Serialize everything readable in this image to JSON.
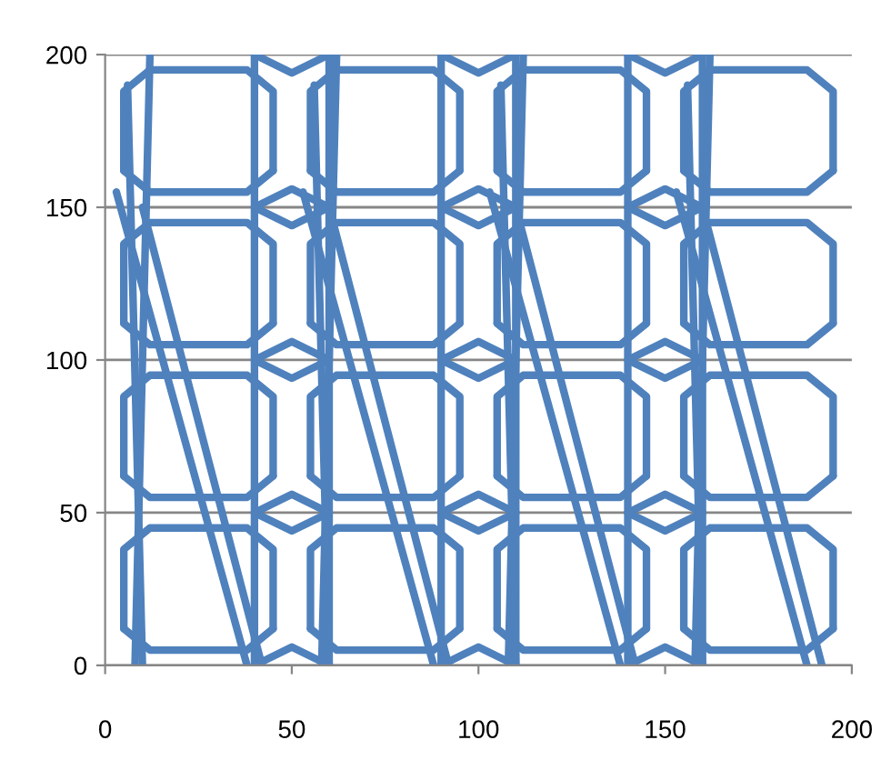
{
  "chart_data": {
    "type": "line",
    "xlim": [
      0,
      200
    ],
    "ylim": [
      0,
      200
    ],
    "xticks": [
      0,
      50,
      100,
      150,
      200
    ],
    "yticks": [
      0,
      50,
      100,
      150,
      200
    ],
    "grid": "y",
    "legend": false,
    "marker": "none",
    "line_style": "solid",
    "series": [
      {
        "color": "#4f81bd",
        "x": [
          5,
          5,
          12,
          38,
          45,
          45
        ],
        "values": [
          12,
          38,
          45,
          45,
          38,
          12
        ]
      },
      {
        "color": "#4f81bd",
        "x": [
          5,
          12,
          38,
          45
        ],
        "values": [
          12,
          5,
          5,
          12
        ]
      },
      {
        "color": "#4f81bd",
        "x": [
          5,
          5,
          12,
          38,
          45,
          45
        ],
        "values": [
          62,
          88,
          95,
          95,
          88,
          62
        ]
      },
      {
        "color": "#4f81bd",
        "x": [
          5,
          12,
          38,
          45
        ],
        "values": [
          62,
          55,
          55,
          62
        ]
      },
      {
        "color": "#4f81bd",
        "x": [
          5,
          5,
          12,
          38,
          45,
          45
        ],
        "values": [
          112,
          138,
          145,
          145,
          138,
          112
        ]
      },
      {
        "color": "#4f81bd",
        "x": [
          5,
          12,
          38,
          45
        ],
        "values": [
          112,
          105,
          105,
          112
        ]
      },
      {
        "color": "#4f81bd",
        "x": [
          5,
          5,
          12,
          38,
          45,
          45
        ],
        "values": [
          162,
          188,
          195,
          195,
          188,
          162
        ]
      },
      {
        "color": "#4f81bd",
        "x": [
          5,
          12,
          38,
          45
        ],
        "values": [
          162,
          155,
          155,
          162
        ]
      },
      {
        "color": "#4f81bd",
        "x": [
          55,
          55,
          62,
          88,
          95,
          95
        ],
        "values": [
          12,
          38,
          45,
          45,
          38,
          12
        ]
      },
      {
        "color": "#4f81bd",
        "x": [
          55,
          62,
          88,
          95
        ],
        "values": [
          12,
          5,
          5,
          12
        ]
      },
      {
        "color": "#4f81bd",
        "x": [
          55,
          55,
          62,
          88,
          95,
          95
        ],
        "values": [
          62,
          88,
          95,
          95,
          88,
          62
        ]
      },
      {
        "color": "#4f81bd",
        "x": [
          55,
          62,
          88,
          95
        ],
        "values": [
          62,
          55,
          55,
          62
        ]
      },
      {
        "color": "#4f81bd",
        "x": [
          55,
          55,
          62,
          88,
          95,
          95
        ],
        "values": [
          112,
          138,
          145,
          145,
          138,
          112
        ]
      },
      {
        "color": "#4f81bd",
        "x": [
          55,
          62,
          88,
          95
        ],
        "values": [
          112,
          105,
          105,
          112
        ]
      },
      {
        "color": "#4f81bd",
        "x": [
          55,
          55,
          62,
          88,
          95,
          95
        ],
        "values": [
          162,
          188,
          195,
          195,
          188,
          162
        ]
      },
      {
        "color": "#4f81bd",
        "x": [
          55,
          62,
          88,
          95
        ],
        "values": [
          162,
          155,
          155,
          162
        ]
      },
      {
        "color": "#4f81bd",
        "x": [
          105,
          105,
          112,
          138,
          145,
          145
        ],
        "values": [
          12,
          38,
          45,
          45,
          38,
          12
        ]
      },
      {
        "color": "#4f81bd",
        "x": [
          105,
          112,
          138,
          145
        ],
        "values": [
          12,
          5,
          5,
          12
        ]
      },
      {
        "color": "#4f81bd",
        "x": [
          105,
          105,
          112,
          138,
          145,
          145
        ],
        "values": [
          62,
          88,
          95,
          95,
          88,
          62
        ]
      },
      {
        "color": "#4f81bd",
        "x": [
          105,
          112,
          138,
          145
        ],
        "values": [
          62,
          55,
          55,
          62
        ]
      },
      {
        "color": "#4f81bd",
        "x": [
          105,
          105,
          112,
          138,
          145,
          145
        ],
        "values": [
          112,
          138,
          145,
          145,
          138,
          112
        ]
      },
      {
        "color": "#4f81bd",
        "x": [
          105,
          112,
          138,
          145
        ],
        "values": [
          112,
          105,
          105,
          112
        ]
      },
      {
        "color": "#4f81bd",
        "x": [
          105,
          105,
          112,
          138,
          145,
          145
        ],
        "values": [
          162,
          188,
          195,
          195,
          188,
          162
        ]
      },
      {
        "color": "#4f81bd",
        "x": [
          105,
          112,
          138,
          145
        ],
        "values": [
          162,
          155,
          155,
          162
        ]
      },
      {
        "color": "#4f81bd",
        "x": [
          155,
          155,
          162,
          188,
          195,
          195
        ],
        "values": [
          12,
          38,
          45,
          45,
          38,
          12
        ]
      },
      {
        "color": "#4f81bd",
        "x": [
          155,
          162,
          188,
          195
        ],
        "values": [
          12,
          5,
          5,
          12
        ]
      },
      {
        "color": "#4f81bd",
        "x": [
          155,
          155,
          162,
          188,
          195,
          195
        ],
        "values": [
          62,
          88,
          95,
          95,
          88,
          62
        ]
      },
      {
        "color": "#4f81bd",
        "x": [
          155,
          162,
          188,
          195
        ],
        "values": [
          62,
          55,
          55,
          62
        ]
      },
      {
        "color": "#4f81bd",
        "x": [
          155,
          155,
          162,
          188,
          195,
          195
        ],
        "values": [
          112,
          138,
          145,
          145,
          138,
          112
        ]
      },
      {
        "color": "#4f81bd",
        "x": [
          155,
          162,
          188,
          195
        ],
        "values": [
          112,
          105,
          105,
          112
        ]
      },
      {
        "color": "#4f81bd",
        "x": [
          155,
          155,
          162,
          188,
          195,
          195
        ],
        "values": [
          162,
          188,
          195,
          195,
          188,
          162
        ]
      },
      {
        "color": "#4f81bd",
        "x": [
          155,
          162,
          188,
          195
        ],
        "values": [
          162,
          155,
          155,
          162
        ]
      },
      {
        "color": "#4f81bd",
        "x": [
          40,
          40
        ],
        "values": [
          200,
          0
        ]
      },
      {
        "color": "#4f81bd",
        "x": [
          60,
          60
        ],
        "values": [
          200,
          0
        ]
      },
      {
        "color": "#4f81bd",
        "x": [
          40,
          50,
          60
        ],
        "values": [
          200,
          194,
          200
        ]
      },
      {
        "color": "#4f81bd",
        "x": [
          40,
          50,
          60
        ],
        "values": [
          0,
          6,
          0
        ]
      },
      {
        "color": "#4f81bd",
        "x": [
          40,
          50,
          60
        ],
        "values": [
          50,
          56,
          50
        ]
      },
      {
        "color": "#4f81bd",
        "x": [
          40,
          50,
          60
        ],
        "values": [
          50,
          44,
          50
        ]
      },
      {
        "color": "#4f81bd",
        "x": [
          40,
          50,
          60
        ],
        "values": [
          100,
          106,
          100
        ]
      },
      {
        "color": "#4f81bd",
        "x": [
          40,
          50,
          60
        ],
        "values": [
          100,
          94,
          100
        ]
      },
      {
        "color": "#4f81bd",
        "x": [
          40,
          50,
          60
        ],
        "values": [
          150,
          156,
          150
        ]
      },
      {
        "color": "#4f81bd",
        "x": [
          40,
          50,
          60
        ],
        "values": [
          150,
          144,
          150
        ]
      },
      {
        "color": "#4f81bd",
        "x": [
          90,
          90
        ],
        "values": [
          200,
          0
        ]
      },
      {
        "color": "#4f81bd",
        "x": [
          110,
          110
        ],
        "values": [
          200,
          0
        ]
      },
      {
        "color": "#4f81bd",
        "x": [
          90,
          100,
          110
        ],
        "values": [
          200,
          194,
          200
        ]
      },
      {
        "color": "#4f81bd",
        "x": [
          90,
          100,
          110
        ],
        "values": [
          0,
          6,
          0
        ]
      },
      {
        "color": "#4f81bd",
        "x": [
          90,
          100,
          110
        ],
        "values": [
          50,
          56,
          50
        ]
      },
      {
        "color": "#4f81bd",
        "x": [
          90,
          100,
          110
        ],
        "values": [
          50,
          44,
          50
        ]
      },
      {
        "color": "#4f81bd",
        "x": [
          90,
          100,
          110
        ],
        "values": [
          100,
          106,
          100
        ]
      },
      {
        "color": "#4f81bd",
        "x": [
          90,
          100,
          110
        ],
        "values": [
          100,
          94,
          100
        ]
      },
      {
        "color": "#4f81bd",
        "x": [
          90,
          100,
          110
        ],
        "values": [
          150,
          156,
          150
        ]
      },
      {
        "color": "#4f81bd",
        "x": [
          90,
          100,
          110
        ],
        "values": [
          150,
          144,
          150
        ]
      },
      {
        "color": "#4f81bd",
        "x": [
          140,
          140
        ],
        "values": [
          200,
          0
        ]
      },
      {
        "color": "#4f81bd",
        "x": [
          160,
          160
        ],
        "values": [
          200,
          0
        ]
      },
      {
        "color": "#4f81bd",
        "x": [
          140,
          150,
          160
        ],
        "values": [
          200,
          194,
          200
        ]
      },
      {
        "color": "#4f81bd",
        "x": [
          140,
          150,
          160
        ],
        "values": [
          0,
          6,
          0
        ]
      },
      {
        "color": "#4f81bd",
        "x": [
          140,
          150,
          160
        ],
        "values": [
          50,
          56,
          50
        ]
      },
      {
        "color": "#4f81bd",
        "x": [
          140,
          150,
          160
        ],
        "values": [
          50,
          44,
          50
        ]
      },
      {
        "color": "#4f81bd",
        "x": [
          140,
          150,
          160
        ],
        "values": [
          100,
          106,
          100
        ]
      },
      {
        "color": "#4f81bd",
        "x": [
          140,
          150,
          160
        ],
        "values": [
          100,
          94,
          100
        ]
      },
      {
        "color": "#4f81bd",
        "x": [
          140,
          150,
          160
        ],
        "values": [
          150,
          156,
          150
        ]
      },
      {
        "color": "#4f81bd",
        "x": [
          140,
          150,
          160
        ],
        "values": [
          150,
          144,
          150
        ]
      },
      {
        "color": "#4f81bd",
        "x": [
          3,
          38
        ],
        "values": [
          155,
          0
        ]
      },
      {
        "color": "#4f81bd",
        "x": [
          10,
          42
        ],
        "values": [
          150,
          0
        ]
      },
      {
        "color": "#4f81bd",
        "x": [
          8,
          12
        ],
        "values": [
          0,
          200
        ]
      },
      {
        "color": "#4f81bd",
        "x": [
          6,
          10
        ],
        "values": [
          190,
          0
        ]
      },
      {
        "color": "#4f81bd",
        "x": [
          53,
          88
        ],
        "values": [
          155,
          0
        ]
      },
      {
        "color": "#4f81bd",
        "x": [
          60,
          92
        ],
        "values": [
          150,
          0
        ]
      },
      {
        "color": "#4f81bd",
        "x": [
          58,
          62
        ],
        "values": [
          0,
          200
        ]
      },
      {
        "color": "#4f81bd",
        "x": [
          56,
          60
        ],
        "values": [
          190,
          0
        ]
      },
      {
        "color": "#4f81bd",
        "x": [
          103,
          138
        ],
        "values": [
          155,
          0
        ]
      },
      {
        "color": "#4f81bd",
        "x": [
          110,
          142
        ],
        "values": [
          150,
          0
        ]
      },
      {
        "color": "#4f81bd",
        "x": [
          108,
          112
        ],
        "values": [
          0,
          200
        ]
      },
      {
        "color": "#4f81bd",
        "x": [
          106,
          110
        ],
        "values": [
          190,
          0
        ]
      },
      {
        "color": "#4f81bd",
        "x": [
          153,
          188
        ],
        "values": [
          155,
          0
        ]
      },
      {
        "color": "#4f81bd",
        "x": [
          160,
          192
        ],
        "values": [
          150,
          0
        ]
      },
      {
        "color": "#4f81bd",
        "x": [
          158,
          162
        ],
        "values": [
          0,
          200
        ]
      },
      {
        "color": "#4f81bd",
        "x": [
          156,
          160
        ],
        "values": [
          190,
          0
        ]
      }
    ]
  }
}
